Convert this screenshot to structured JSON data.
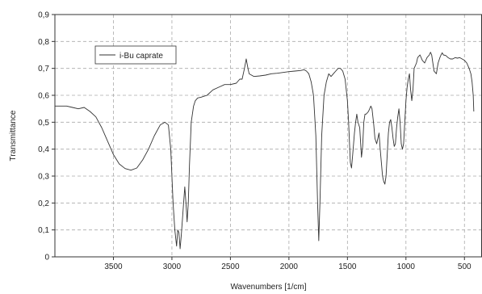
{
  "chart_data": {
    "type": "line",
    "title": "",
    "xlabel": "Wavenumbers [1/cm]",
    "ylabel": "Transmittance",
    "xlim": [
      4000,
      350
    ],
    "ylim": [
      0,
      0.9
    ],
    "x_reversed": true,
    "grid": true,
    "legend_placement": "top-left",
    "x_ticks": [
      3500,
      3000,
      2500,
      2000,
      1500,
      1000,
      500
    ],
    "x_tick_labels": [
      "3500",
      "3000",
      "2500",
      "2000",
      "1500",
      "1000",
      "500"
    ],
    "y_ticks": [
      0,
      0.1,
      0.2,
      0.3,
      0.4,
      0.5,
      0.6,
      0.7,
      0.8,
      0.9
    ],
    "y_tick_labels": [
      "0",
      "0,1",
      "0,2",
      "0,3",
      "0,4",
      "0,5",
      "0,6",
      "0,7",
      "0,8",
      "0,9"
    ],
    "line_color": "#333333",
    "grid_color": "#aaaaaa",
    "series": [
      {
        "name": "i-Bu caprate",
        "points": [
          [
            4000,
            0.56
          ],
          [
            3900,
            0.56
          ],
          [
            3850,
            0.555
          ],
          [
            3800,
            0.55
          ],
          [
            3750,
            0.555
          ],
          [
            3700,
            0.54
          ],
          [
            3650,
            0.52
          ],
          [
            3600,
            0.48
          ],
          [
            3550,
            0.43
          ],
          [
            3500,
            0.38
          ],
          [
            3450,
            0.345
          ],
          [
            3400,
            0.328
          ],
          [
            3350,
            0.322
          ],
          [
            3300,
            0.33
          ],
          [
            3250,
            0.36
          ],
          [
            3200,
            0.4
          ],
          [
            3150,
            0.45
          ],
          [
            3100,
            0.49
          ],
          [
            3060,
            0.5
          ],
          [
            3030,
            0.49
          ],
          [
            3010,
            0.4
          ],
          [
            2990,
            0.2
          ],
          [
            2975,
            0.1
          ],
          [
            2960,
            0.04
          ],
          [
            2950,
            0.1
          ],
          [
            2940,
            0.09
          ],
          [
            2930,
            0.03
          ],
          [
            2920,
            0.08
          ],
          [
            2900,
            0.2
          ],
          [
            2890,
            0.26
          ],
          [
            2880,
            0.2
          ],
          [
            2870,
            0.13
          ],
          [
            2860,
            0.2
          ],
          [
            2850,
            0.34
          ],
          [
            2835,
            0.5
          ],
          [
            2815,
            0.56
          ],
          [
            2800,
            0.58
          ],
          [
            2780,
            0.59
          ],
          [
            2750,
            0.593
          ],
          [
            2700,
            0.6
          ],
          [
            2650,
            0.62
          ],
          [
            2600,
            0.63
          ],
          [
            2550,
            0.64
          ],
          [
            2500,
            0.64
          ],
          [
            2450,
            0.645
          ],
          [
            2420,
            0.66
          ],
          [
            2400,
            0.66
          ],
          [
            2380,
            0.7
          ],
          [
            2365,
            0.735
          ],
          [
            2350,
            0.7
          ],
          [
            2340,
            0.68
          ],
          [
            2320,
            0.675
          ],
          [
            2300,
            0.67
          ],
          [
            2250,
            0.672
          ],
          [
            2200,
            0.675
          ],
          [
            2150,
            0.68
          ],
          [
            2100,
            0.682
          ],
          [
            2050,
            0.685
          ],
          [
            2000,
            0.688
          ],
          [
            1950,
            0.69
          ],
          [
            1900,
            0.692
          ],
          [
            1870,
            0.695
          ],
          [
            1850,
            0.69
          ],
          [
            1830,
            0.68
          ],
          [
            1810,
            0.65
          ],
          [
            1790,
            0.6
          ],
          [
            1770,
            0.45
          ],
          [
            1755,
            0.2
          ],
          [
            1745,
            0.06
          ],
          [
            1735,
            0.2
          ],
          [
            1720,
            0.45
          ],
          [
            1700,
            0.6
          ],
          [
            1680,
            0.65
          ],
          [
            1660,
            0.68
          ],
          [
            1640,
            0.67
          ],
          [
            1620,
            0.68
          ],
          [
            1600,
            0.69
          ],
          [
            1580,
            0.7
          ],
          [
            1560,
            0.7
          ],
          [
            1540,
            0.69
          ],
          [
            1520,
            0.66
          ],
          [
            1500,
            0.58
          ],
          [
            1490,
            0.5
          ],
          [
            1475,
            0.35
          ],
          [
            1465,
            0.33
          ],
          [
            1455,
            0.38
          ],
          [
            1440,
            0.46
          ],
          [
            1430,
            0.5
          ],
          [
            1420,
            0.53
          ],
          [
            1410,
            0.5
          ],
          [
            1395,
            0.48
          ],
          [
            1380,
            0.37
          ],
          [
            1370,
            0.41
          ],
          [
            1360,
            0.5
          ],
          [
            1350,
            0.53
          ],
          [
            1340,
            0.53
          ],
          [
            1320,
            0.54
          ],
          [
            1300,
            0.56
          ],
          [
            1290,
            0.55
          ],
          [
            1275,
            0.49
          ],
          [
            1265,
            0.44
          ],
          [
            1250,
            0.42
          ],
          [
            1240,
            0.44
          ],
          [
            1230,
            0.46
          ],
          [
            1220,
            0.4
          ],
          [
            1210,
            0.35
          ],
          [
            1200,
            0.3
          ],
          [
            1190,
            0.28
          ],
          [
            1180,
            0.27
          ],
          [
            1170,
            0.3
          ],
          [
            1160,
            0.38
          ],
          [
            1150,
            0.46
          ],
          [
            1140,
            0.5
          ],
          [
            1130,
            0.51
          ],
          [
            1120,
            0.48
          ],
          [
            1110,
            0.44
          ],
          [
            1100,
            0.41
          ],
          [
            1090,
            0.42
          ],
          [
            1080,
            0.48
          ],
          [
            1070,
            0.52
          ],
          [
            1060,
            0.55
          ],
          [
            1050,
            0.5
          ],
          [
            1040,
            0.42
          ],
          [
            1030,
            0.4
          ],
          [
            1020,
            0.42
          ],
          [
            1010,
            0.5
          ],
          [
            1000,
            0.58
          ],
          [
            990,
            0.63
          ],
          [
            980,
            0.66
          ],
          [
            970,
            0.68
          ],
          [
            960,
            0.62
          ],
          [
            950,
            0.58
          ],
          [
            940,
            0.62
          ],
          [
            930,
            0.7
          ],
          [
            910,
            0.72
          ],
          [
            900,
            0.74
          ],
          [
            880,
            0.75
          ],
          [
            860,
            0.73
          ],
          [
            840,
            0.72
          ],
          [
            820,
            0.74
          ],
          [
            800,
            0.75
          ],
          [
            790,
            0.76
          ],
          [
            780,
            0.75
          ],
          [
            760,
            0.69
          ],
          [
            740,
            0.68
          ],
          [
            725,
            0.72
          ],
          [
            710,
            0.74
          ],
          [
            700,
            0.75
          ],
          [
            690,
            0.758
          ],
          [
            680,
            0.75
          ],
          [
            660,
            0.748
          ],
          [
            640,
            0.74
          ],
          [
            620,
            0.735
          ],
          [
            600,
            0.735
          ],
          [
            580,
            0.74
          ],
          [
            560,
            0.738
          ],
          [
            540,
            0.74
          ],
          [
            520,
            0.735
          ],
          [
            500,
            0.73
          ],
          [
            480,
            0.72
          ],
          [
            460,
            0.7
          ],
          [
            445,
            0.68
          ],
          [
            435,
            0.65
          ],
          [
            425,
            0.6
          ],
          [
            420,
            0.54
          ]
        ]
      }
    ]
  }
}
